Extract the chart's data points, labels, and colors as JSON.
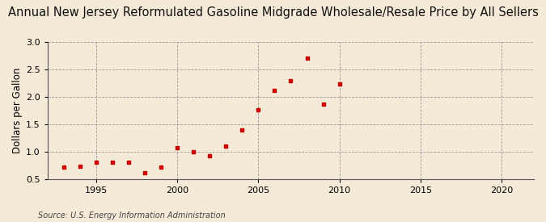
{
  "title": "Annual New Jersey Reformulated Gasoline Midgrade Wholesale/Resale Price by All Sellers",
  "ylabel": "Dollars per Gallon",
  "source": "Source: U.S. Energy Information Administration",
  "background_color": "#f5ead8",
  "marker_color": "#cc0000",
  "years": [
    1993,
    1994,
    1995,
    1996,
    1997,
    1998,
    1999,
    2000,
    2001,
    2002,
    2003,
    2004,
    2005,
    2006,
    2007,
    2008,
    2009,
    2010
  ],
  "values": [
    0.72,
    0.73,
    0.8,
    0.8,
    0.8,
    0.62,
    0.72,
    1.07,
    0.99,
    0.92,
    1.1,
    1.4,
    1.77,
    2.12,
    2.3,
    2.7,
    1.87,
    2.23
  ],
  "xlim": [
    1992,
    2022
  ],
  "ylim": [
    0.5,
    3.0
  ],
  "yticks": [
    0.5,
    1.0,
    1.5,
    2.0,
    2.5,
    3.0
  ],
  "xticks": [
    1995,
    2000,
    2005,
    2010,
    2015,
    2020
  ],
  "grid_color": "#999999",
  "title_fontsize": 10.5,
  "axis_fontsize": 8.5,
  "tick_fontsize": 8,
  "source_fontsize": 7
}
